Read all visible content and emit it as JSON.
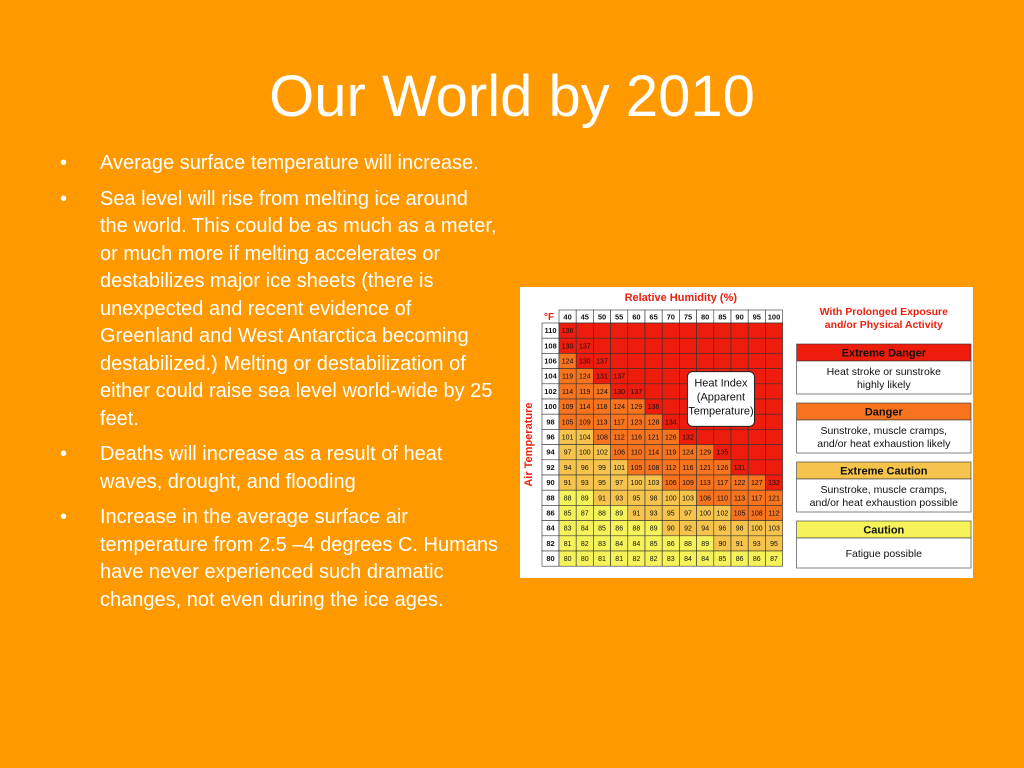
{
  "slide": {
    "title": "Our World by 2010",
    "bullets": [
      "Average surface temperature will increase.",
      "Sea level will  rise from melting ice around the world. This could be as much as a meter, or much more if melting accelerates or destabilizes major ice sheets (there is unexpected and recent evidence of Greenland and West Antarctica becoming destabilized.) Melting or destabilization of either could raise sea level world-wide by 25 feet.",
      "Deaths will increase as a result of heat waves, drought, and flooding",
      "Increase in the average surface air temperature from 2.5 –4 degrees C. Humans have never experienced such dramatic changes, not even during the ice ages."
    ],
    "bullet_symbol": "•"
  },
  "heat_index": {
    "title": "Relative Humidity (%)",
    "unit_label": "°F",
    "y_axis_label": "Air Temperature",
    "inset_label": [
      "Heat Index",
      "(Apparent",
      "Temperature)"
    ],
    "humidity": [
      "40",
      "45",
      "50",
      "55",
      "60",
      "65",
      "70",
      "75",
      "80",
      "85",
      "90",
      "95",
      "100"
    ],
    "temperatures": [
      "110",
      "108",
      "106",
      "104",
      "102",
      "100",
      "98",
      "96",
      "94",
      "92",
      "90",
      "88",
      "86",
      "84",
      "82",
      "80"
    ],
    "rows": [
      [
        "136"
      ],
      [
        "130",
        "137"
      ],
      [
        "124",
        "130",
        "137"
      ],
      [
        "119",
        "124",
        "131",
        "137"
      ],
      [
        "114",
        "119",
        "124",
        "130",
        "137"
      ],
      [
        "109",
        "114",
        "118",
        "124",
        "129",
        "136"
      ],
      [
        "105",
        "109",
        "113",
        "117",
        "123",
        "128",
        "134"
      ],
      [
        "101",
        "104",
        "108",
        "112",
        "116",
        "121",
        "126",
        "132"
      ],
      [
        "97",
        "100",
        "102",
        "106",
        "110",
        "114",
        "119",
        "124",
        "129",
        "135"
      ],
      [
        "94",
        "96",
        "99",
        "101",
        "105",
        "108",
        "112",
        "116",
        "121",
        "126",
        "131"
      ],
      [
        "91",
        "93",
        "95",
        "97",
        "100",
        "103",
        "106",
        "109",
        "113",
        "117",
        "122",
        "127",
        "132"
      ],
      [
        "88",
        "89",
        "91",
        "93",
        "95",
        "98",
        "100",
        "103",
        "106",
        "110",
        "113",
        "117",
        "121"
      ],
      [
        "85",
        "87",
        "88",
        "89",
        "91",
        "93",
        "95",
        "97",
        "100",
        "102",
        "105",
        "108",
        "112"
      ],
      [
        "83",
        "84",
        "85",
        "86",
        "88",
        "89",
        "90",
        "92",
        "94",
        "96",
        "98",
        "100",
        "103"
      ],
      [
        "81",
        "82",
        "83",
        "84",
        "84",
        "85",
        "86",
        "88",
        "89",
        "90",
        "91",
        "93",
        "95"
      ],
      [
        "80",
        "80",
        "81",
        "81",
        "82",
        "82",
        "83",
        "84",
        "84",
        "85",
        "86",
        "86",
        "87"
      ]
    ],
    "legend_title": [
      "With Prolonged Exposure",
      "and/or Physical Activity"
    ],
    "legend": [
      {
        "level": "Extreme Danger",
        "desc": [
          "Heat stroke or sunstroke",
          "highly likely"
        ],
        "color": "#ee1c0c"
      },
      {
        "level": "Danger",
        "desc": [
          "Sunstroke, muscle cramps,",
          "and/or heat exhaustion likely"
        ],
        "color": "#f7731e"
      },
      {
        "level": "Extreme Caution",
        "desc": [
          "Sunstroke, muscle cramps,",
          "and/or heat exhaustion possible"
        ],
        "color": "#f6c44c"
      },
      {
        "level": "Caution",
        "desc": [
          "Fatigue possible"
        ],
        "color": "#f6f25a"
      }
    ],
    "colors": {
      "extreme_danger": "#ee1c0c",
      "danger": "#f7731e",
      "extreme_caution": "#f6c44c",
      "caution": "#f6f25a",
      "title_red": "#e8210f"
    }
  }
}
